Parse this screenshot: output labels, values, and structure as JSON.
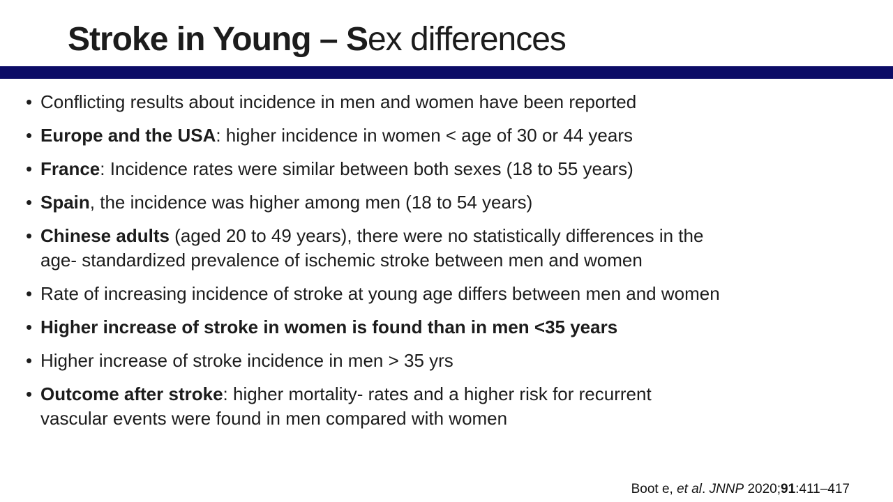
{
  "title": {
    "bold_text": "Stroke in Young – S",
    "regular_text": "ex differences"
  },
  "colors": {
    "divider": "#0c0c66",
    "text": "#1c1c1c",
    "background": "#ffffff"
  },
  "bullet_glyph": "•",
  "bullets": [
    {
      "lines": [
        [
          {
            "text": "Conflicting results about incidence in men and women have been reported",
            "bold": false
          }
        ]
      ]
    },
    {
      "lines": [
        [
          {
            "text": "Europe and the USA",
            "bold": true
          },
          {
            "text": ": higher incidence in women < age of 30 or 44 years",
            "bold": false
          }
        ]
      ]
    },
    {
      "lines": [
        [
          {
            "text": "France",
            "bold": true
          },
          {
            "text": ": Incidence rates were similar between both sexes (18 to 55 years)",
            "bold": false
          }
        ]
      ]
    },
    {
      "lines": [
        [
          {
            "text": "Spain",
            "bold": true
          },
          {
            "text": ", the incidence was higher among men (18 to 54 years)",
            "bold": false
          }
        ]
      ]
    },
    {
      "lines": [
        [
          {
            "text": "Chinese adults",
            "bold": true
          },
          {
            "text": " (aged 20 to 49 years), there were no statistically differences in the",
            "bold": false
          }
        ],
        [
          {
            "text": "age- standardized prevalence of ischemic stroke between men and women",
            "bold": false
          }
        ]
      ]
    },
    {
      "lines": [
        [
          {
            "text": "Rate of increasing incidence of stroke at young age differs between men and women",
            "bold": false
          }
        ]
      ]
    },
    {
      "lines": [
        [
          {
            "text": "Higher increase of stroke in women is found than in men <35 years",
            "bold": true
          }
        ]
      ]
    },
    {
      "lines": [
        [
          {
            "text": "Higher increase of stroke incidence in men > 35 yrs",
            "bold": false
          }
        ]
      ]
    },
    {
      "lines": [
        [
          {
            "text": "Outcome after stroke",
            "bold": true
          },
          {
            "text": ": higher mortality- rates and a higher risk for recurrent",
            "bold": false
          }
        ],
        [
          {
            "text": "vascular events were found in men compared with women",
            "bold": false
          }
        ]
      ]
    }
  ],
  "citation": {
    "segments": [
      {
        "text": "Boot e, ",
        "style": "regular"
      },
      {
        "text": "et al",
        "style": "italic"
      },
      {
        "text": ". ",
        "style": "regular"
      },
      {
        "text": "JNNP",
        "style": "italic"
      },
      {
        "text": " 2020;",
        "style": "regular"
      },
      {
        "text": "91",
        "style": "bold"
      },
      {
        "text": ":411–417",
        "style": "regular"
      }
    ]
  }
}
